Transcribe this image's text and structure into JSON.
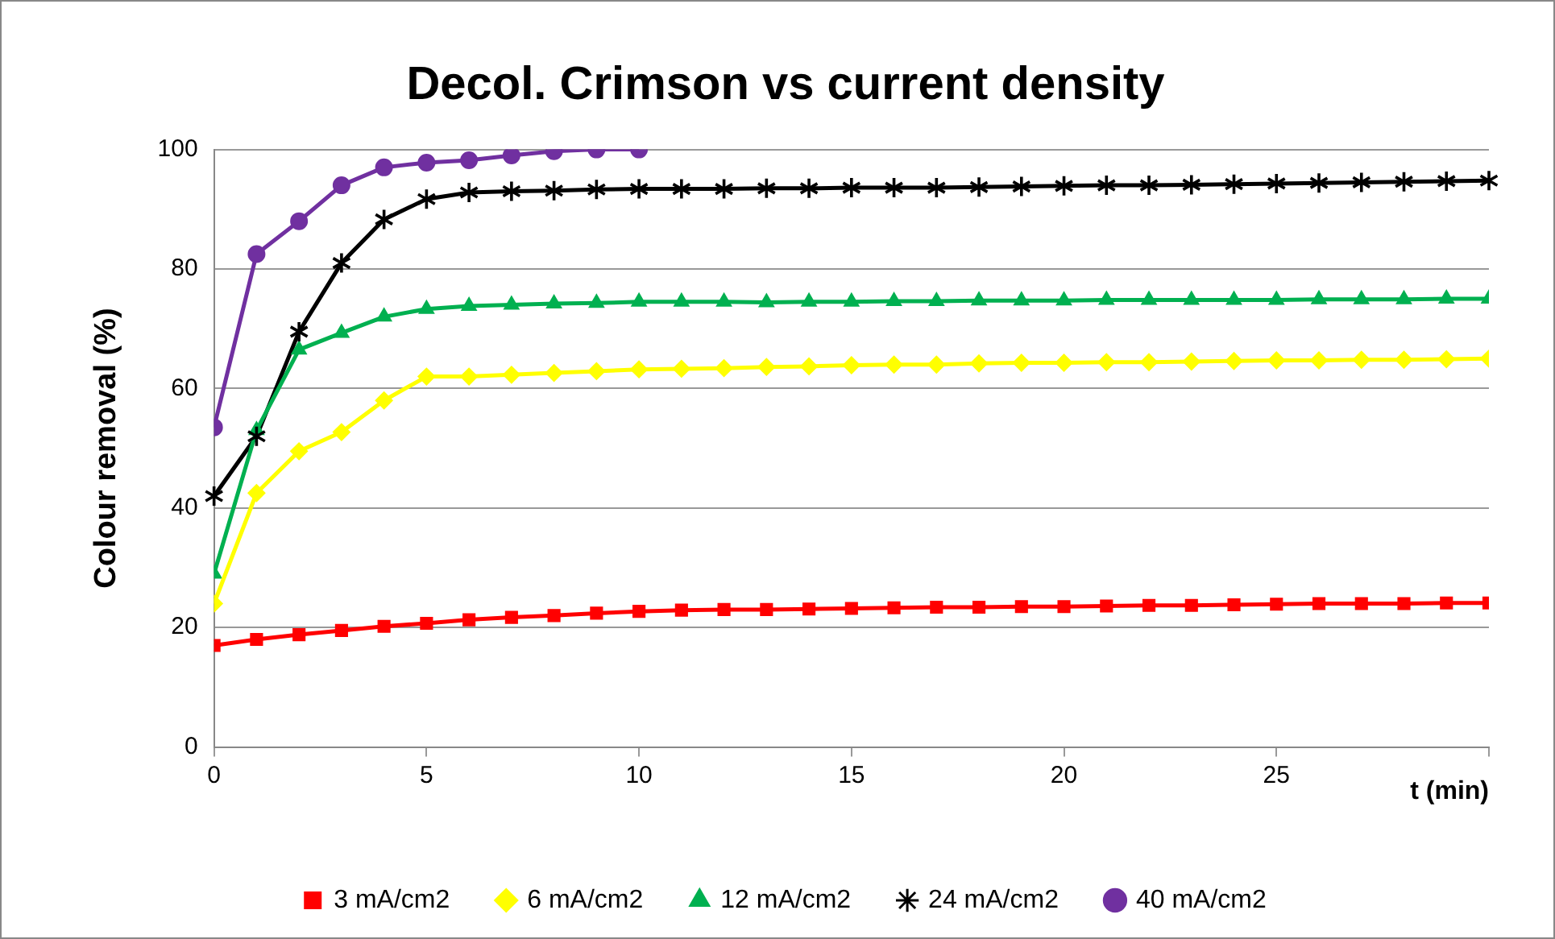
{
  "chart_data": {
    "type": "line",
    "title": "Decol. Crimson vs current density",
    "xlabel": "t (min)",
    "ylabel": "Colour removal (%)",
    "x": [
      0,
      1,
      2,
      3,
      4,
      5,
      6,
      7,
      8,
      9,
      10,
      11,
      12,
      13,
      14,
      15,
      16,
      17,
      18,
      19,
      20,
      21,
      22,
      23,
      24,
      25,
      26,
      27,
      28,
      29,
      30
    ],
    "xlim": [
      0,
      30
    ],
    "xticks": [
      0,
      5,
      10,
      15,
      20,
      25,
      {
        "value": 30,
        "label": null
      }
    ],
    "ylim": [
      0,
      100
    ],
    "yticks": [
      0,
      20,
      40,
      60,
      80,
      100
    ],
    "grid": "y",
    "legend": "bottom",
    "series": [
      {
        "name": "3 mA/cm2",
        "color": "#ff0000",
        "marker": "square",
        "values": [
          17,
          18,
          18.8,
          19.5,
          20.2,
          20.7,
          21.3,
          21.7,
          22,
          22.4,
          22.7,
          22.9,
          23,
          23,
          23.1,
          23.2,
          23.3,
          23.4,
          23.4,
          23.5,
          23.5,
          23.6,
          23.7,
          23.7,
          23.8,
          23.9,
          24,
          24,
          24,
          24.1,
          24.1
        ]
      },
      {
        "name": "6 mA/cm2",
        "color": "#ffff00",
        "marker": "diamond",
        "values": [
          24,
          42.5,
          49.5,
          52.7,
          58,
          62,
          62,
          62.3,
          62.6,
          62.9,
          63.2,
          63.3,
          63.4,
          63.6,
          63.7,
          63.9,
          64,
          64,
          64.2,
          64.3,
          64.3,
          64.4,
          64.4,
          64.5,
          64.6,
          64.7,
          64.7,
          64.8,
          64.8,
          64.9,
          65
        ]
      },
      {
        "name": "12 mA/cm2",
        "color": "#00b050",
        "marker": "triangle",
        "values": [
          29,
          53,
          66.5,
          69.3,
          72,
          73.3,
          73.8,
          74,
          74.2,
          74.3,
          74.5,
          74.5,
          74.5,
          74.4,
          74.5,
          74.5,
          74.6,
          74.6,
          74.7,
          74.7,
          74.7,
          74.8,
          74.8,
          74.8,
          74.8,
          74.8,
          74.9,
          74.9,
          74.9,
          75,
          75
        ]
      },
      {
        "name": "24 mA/cm2",
        "color": "#000000",
        "marker": "cross",
        "values": [
          42,
          52,
          69.5,
          81,
          88.3,
          91.7,
          92.8,
          93,
          93.1,
          93.3,
          93.4,
          93.4,
          93.4,
          93.5,
          93.5,
          93.6,
          93.6,
          93.6,
          93.7,
          93.8,
          93.9,
          94,
          94,
          94.1,
          94.2,
          94.3,
          94.4,
          94.5,
          94.6,
          94.7,
          94.8
        ]
      },
      {
        "name": "40 mA/cm2",
        "color": "#7030a0",
        "marker": "circle",
        "x": [
          0,
          1,
          2,
          3,
          4,
          5,
          6,
          7,
          8,
          9,
          10
        ],
        "values": [
          53.5,
          82.5,
          88,
          94,
          97,
          97.8,
          98.2,
          99,
          99.7,
          100,
          100
        ]
      }
    ]
  }
}
